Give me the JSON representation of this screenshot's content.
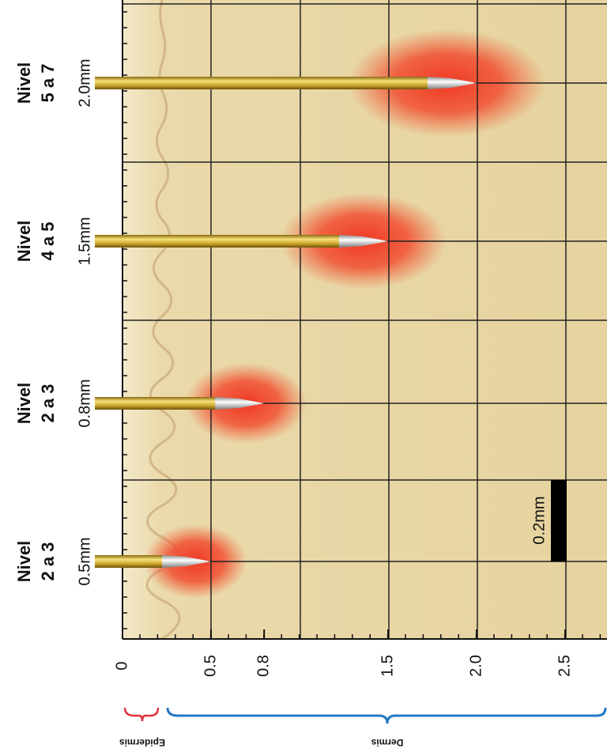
{
  "needles": [
    {
      "level": "Nivel",
      "range": "2 a 3",
      "depth_label": "0.5mm",
      "depth": 0.5
    },
    {
      "level": "Nivel",
      "range": "2 a 3",
      "depth_label": "0.8mm",
      "depth": 0.8
    },
    {
      "level": "Nivel",
      "range": "4 a 5",
      "depth_label": "1.5mm",
      "depth": 1.5
    },
    {
      "level": "Nivel",
      "range": "5 a 7",
      "depth_label": "2.0mm",
      "depth": 2.0
    }
  ],
  "scale_bar": "0.2mm",
  "axis_ticks": [
    0,
    0.5,
    0.8,
    1.5,
    {
      "value": 2,
      "label": "2.0"
    },
    2.5
  ],
  "layers": {
    "epidermis": "Epidermis",
    "dermis": "Dermis"
  }
}
